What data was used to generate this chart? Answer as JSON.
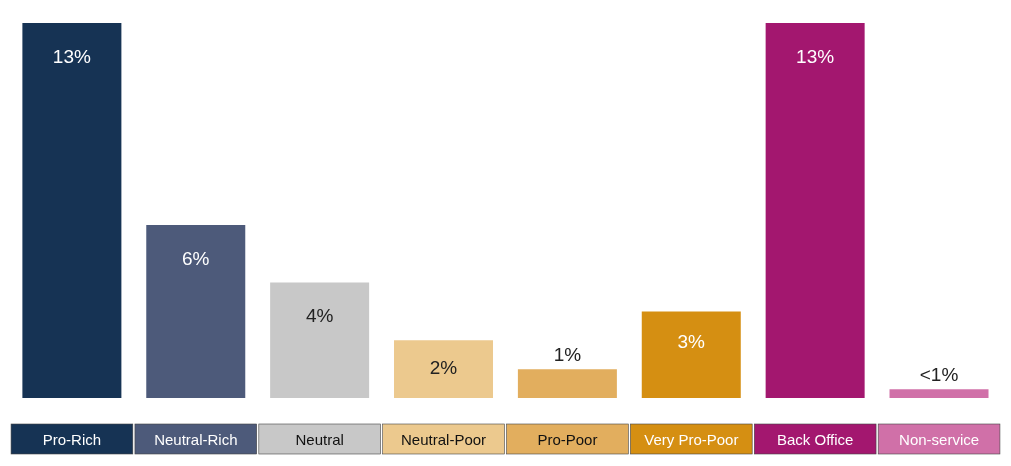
{
  "chart_data": {
    "type": "bar",
    "categories": [
      "Pro-Rich",
      "Neutral-Rich",
      "Neutral",
      "Neutral-Poor",
      "Pro-Poor",
      "Very Pro-Poor",
      "Back Office",
      "Non-service"
    ],
    "values": [
      13,
      6,
      4,
      2,
      1,
      3,
      13,
      0.3
    ],
    "value_labels": [
      "13%",
      "6%",
      "4%",
      "2%",
      "1%",
      "3%",
      "13%",
      "<1%"
    ],
    "colors": [
      "#163354",
      "#4d5a7a",
      "#c8c8c8",
      "#ecc98e",
      "#e2ae5e",
      "#d58f12",
      "#a3176f",
      "#d070a8"
    ],
    "grid": false,
    "legend": false
  }
}
